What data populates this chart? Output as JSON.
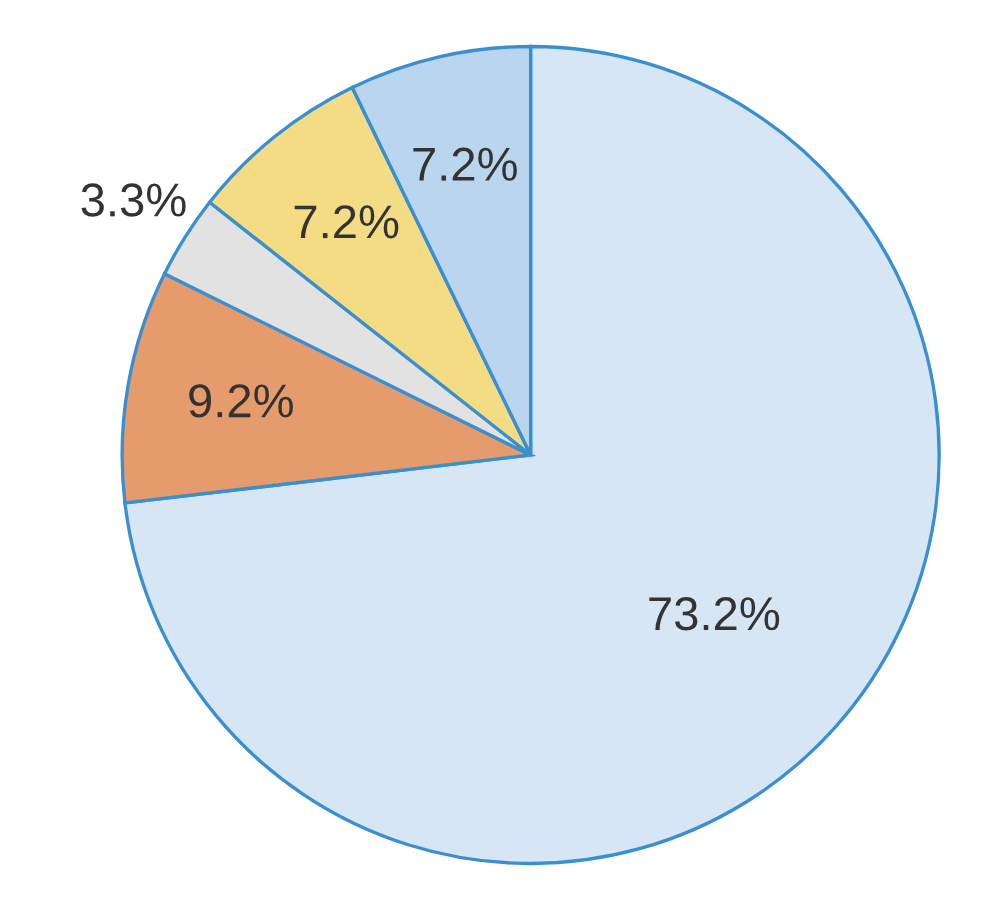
{
  "chart_data": {
    "type": "pie",
    "categories": [
      null,
      null,
      null,
      null,
      null
    ],
    "values": [
      73.2,
      9.2,
      3.3,
      7.2,
      7.2
    ],
    "colors": [
      "#d6e6f4",
      "#e59b6b",
      "#e2e2e2",
      "#f3dc84",
      "#b9d6ee"
    ],
    "value_labels": [
      "73.2%",
      "9.2%",
      "3.3%",
      "7.2%",
      "7.2%"
    ]
  }
}
